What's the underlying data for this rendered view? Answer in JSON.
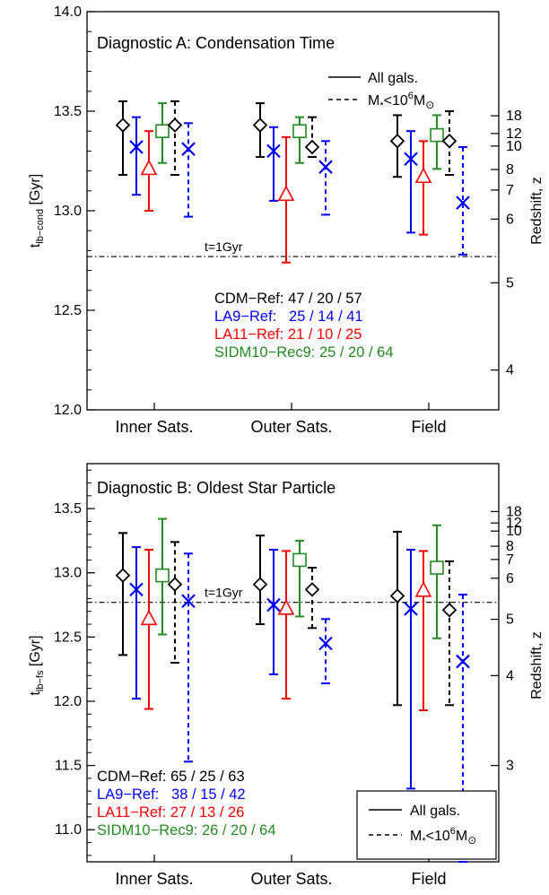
{
  "chart_data": [
    {
      "type": "errorbar",
      "title": "Diagnostic A: Condensation Time",
      "ylabel": "t_lb-cond [Gyr]",
      "ylabel_main": "t",
      "ylabel_sub": "lb−cond",
      "ylabel_unit": " [Gyr]",
      "right_axis_label": "Redshift, z",
      "ylim": [
        12.0,
        14.0
      ],
      "y_ticks": [
        "12.0",
        "12.5",
        "13.0",
        "13.5",
        "14.0"
      ],
      "right_ticks": [
        {
          "z": "18",
          "t": 13.477
        },
        {
          "z": "12",
          "t": 13.388
        },
        {
          "z": "10",
          "t": 13.325
        },
        {
          "z": "8",
          "t": 13.207
        },
        {
          "z": "7",
          "t": 13.104
        },
        {
          "z": "6",
          "t": 12.958
        },
        {
          "z": "5",
          "t": 12.638
        },
        {
          "z": "4",
          "t": 12.2
        }
      ],
      "categories": [
        "Inner Sats.",
        "Outer Sats.",
        "Field"
      ],
      "reference_line": {
        "y": 12.77,
        "label": "t=1Gyr"
      },
      "legend": {
        "solid": "All gals.",
        "dashed_prefix": "M",
        "dashed_sub": "*",
        "dashed_mid": "<10",
        "dashed_sup": "6",
        "dashed_suffix": "M",
        "dashed_sun": "⊙"
      },
      "counts": [
        {
          "label": "CDM−Ref:",
          "values": "47 / 20 / 57",
          "color": "#000000"
        },
        {
          "label": "LA9−Ref:",
          "values": "25 / 14 / 41",
          "color": "#0000ff"
        },
        {
          "label": "LA11−Ref:",
          "values": "21 / 10 / 25",
          "color": "#ff0000"
        },
        {
          "label": "SIDM10−Rec9:",
          "values": "25 / 20 / 64",
          "color": "#228b22"
        }
      ],
      "series": [
        {
          "name": "CDM-Ref",
          "marker": "diamond",
          "color": "#000000",
          "dashed": false,
          "values": [
            [
              13.43,
              13.18,
              13.55
            ],
            [
              13.43,
              13.27,
              13.54
            ],
            [
              13.35,
              13.17,
              13.48
            ]
          ]
        },
        {
          "name": "LA9-Ref",
          "marker": "cross",
          "color": "#0000ff",
          "dashed": false,
          "values": [
            [
              13.32,
              13.08,
              13.47
            ],
            [
              13.3,
              13.05,
              13.42
            ],
            [
              13.26,
              12.89,
              13.4
            ]
          ]
        },
        {
          "name": "LA11-Ref",
          "marker": "triangle",
          "color": "#ff0000",
          "dashed": false,
          "values": [
            [
              13.21,
              13.0,
              13.4
            ],
            [
              13.08,
              12.74,
              13.37
            ],
            [
              13.17,
              12.88,
              13.35
            ]
          ]
        },
        {
          "name": "SIDM10-Rec9",
          "marker": "square",
          "color": "#228b22",
          "dashed": false,
          "values": [
            [
              13.4,
              13.24,
              13.54
            ],
            [
              13.4,
              13.24,
              13.47
            ],
            [
              13.38,
              13.21,
              13.48
            ]
          ]
        },
        {
          "name": "CDM-Ref",
          "marker": "diamond",
          "color": "#000000",
          "dashed": true,
          "values": [
            [
              13.43,
              13.18,
              13.55
            ],
            [
              13.32,
              13.27,
              13.47
            ],
            [
              13.35,
              13.18,
              13.5
            ]
          ]
        },
        {
          "name": "LA9-Ref",
          "marker": "cross",
          "color": "#0000ff",
          "dashed": true,
          "values": [
            [
              13.31,
              12.97,
              13.44
            ],
            [
              13.22,
              12.98,
              13.35
            ],
            [
              13.04,
              12.78,
              13.32
            ]
          ]
        }
      ]
    },
    {
      "type": "errorbar",
      "title": "Diagnostic B: Oldest Star Particle",
      "ylabel": "t_lb-fs [Gyr]",
      "ylabel_main": "t",
      "ylabel_sub": "lb−fs",
      "ylabel_unit": " [Gyr]",
      "right_axis_label": "Redshift, z",
      "ylim": [
        10.75,
        13.85
      ],
      "y_ticks": [
        "11.0",
        "11.5",
        "12.0",
        "12.5",
        "13.0",
        "13.5"
      ],
      "right_ticks": [
        {
          "z": "18",
          "t": 13.477
        },
        {
          "z": "12",
          "t": 13.388
        },
        {
          "z": "10",
          "t": 13.325
        },
        {
          "z": "8",
          "t": 13.207
        },
        {
          "z": "7",
          "t": 13.104
        },
        {
          "z": "6",
          "t": 12.958
        },
        {
          "z": "5",
          "t": 12.638
        },
        {
          "z": "4",
          "t": 12.2
        },
        {
          "z": "3",
          "t": 11.5
        }
      ],
      "categories": [
        "Inner Sats.",
        "Outer Sats.",
        "Field"
      ],
      "reference_line": {
        "y": 12.77,
        "label": "t=1Gyr"
      },
      "legend": {
        "solid": "All gals.",
        "dashed_prefix": "M",
        "dashed_sub": "*",
        "dashed_mid": "<10",
        "dashed_sup": "6",
        "dashed_suffix": "M",
        "dashed_sun": "⊙"
      },
      "counts": [
        {
          "label": "CDM−Ref:",
          "values": "65 / 25 / 63",
          "color": "#000000"
        },
        {
          "label": "LA9−Ref:",
          "values": "38 / 15 / 42",
          "color": "#0000ff"
        },
        {
          "label": "LA11−Ref:",
          "values": "27 / 13 / 26",
          "color": "#ff0000"
        },
        {
          "label": "SIDM10−Rec9:",
          "values": "26 / 20 / 64",
          "color": "#228b22"
        }
      ],
      "series": [
        {
          "name": "CDM-Ref",
          "marker": "diamond",
          "color": "#000000",
          "dashed": false,
          "values": [
            [
              12.98,
              12.36,
              13.31
            ],
            [
              12.91,
              12.6,
              13.29
            ],
            [
              12.82,
              11.97,
              13.32
            ]
          ]
        },
        {
          "name": "LA9-Ref",
          "marker": "cross",
          "color": "#0000ff",
          "dashed": false,
          "values": [
            [
              12.87,
              12.02,
              13.2
            ],
            [
              12.75,
              12.21,
              13.18
            ],
            [
              12.72,
              11.32,
              13.18
            ]
          ]
        },
        {
          "name": "LA11-Ref",
          "marker": "triangle",
          "color": "#ff0000",
          "dashed": false,
          "values": [
            [
              12.64,
              11.94,
              13.18
            ],
            [
              12.72,
              12.02,
              13.17
            ],
            [
              12.86,
              11.93,
              13.17
            ]
          ]
        },
        {
          "name": "SIDM10-Rec9",
          "marker": "square",
          "color": "#228b22",
          "dashed": false,
          "values": [
            [
              12.98,
              12.52,
              13.42
            ],
            [
              13.1,
              12.66,
              13.25
            ],
            [
              13.04,
              12.49,
              13.37
            ]
          ]
        },
        {
          "name": "CDM-Ref",
          "marker": "diamond",
          "color": "#000000",
          "dashed": true,
          "values": [
            [
              12.91,
              12.3,
              13.24
            ],
            [
              12.87,
              12.57,
              13.04
            ],
            [
              12.71,
              11.97,
              13.09
            ]
          ]
        },
        {
          "name": "LA9-Ref",
          "marker": "cross",
          "color": "#0000ff",
          "dashed": true,
          "values": [
            [
              12.78,
              11.53,
              13.15
            ],
            [
              12.45,
              12.14,
              12.64
            ],
            [
              12.31,
              10.75,
              12.83
            ]
          ]
        }
      ]
    }
  ]
}
